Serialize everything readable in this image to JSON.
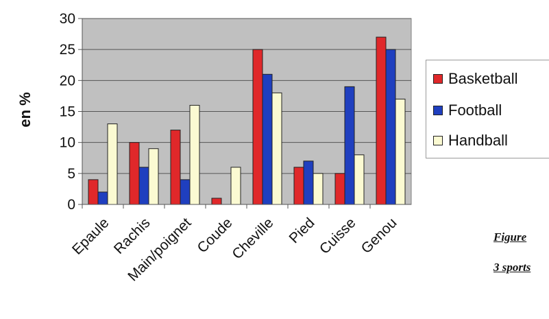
{
  "chart_data": {
    "type": "bar",
    "title": "",
    "xlabel": "",
    "ylabel": "en %",
    "ylim": [
      0,
      30
    ],
    "yticks": [
      0,
      5,
      10,
      15,
      20,
      25,
      30
    ],
    "categories": [
      "Epaule",
      "Rachis",
      "Main/poignet",
      "Coude",
      "Cheville",
      "Pied",
      "Cuisse",
      "Genou"
    ],
    "series": [
      {
        "name": "Basketball",
        "color": "#e0282a",
        "values": [
          4,
          10,
          12,
          1,
          25,
          6,
          5,
          27
        ]
      },
      {
        "name": "Football",
        "color": "#1f3fbf",
        "values": [
          2,
          6,
          4,
          0,
          21,
          7,
          19,
          25
        ]
      },
      {
        "name": "Handball",
        "color": "#fbfad2",
        "values": [
          13,
          9,
          16,
          6,
          18,
          5,
          8,
          17
        ]
      }
    ],
    "grid": true,
    "plot_background": "#c0c0c0",
    "legend_position": "right"
  },
  "caption": {
    "line1": "Figure",
    "line2": "3 sports"
  }
}
